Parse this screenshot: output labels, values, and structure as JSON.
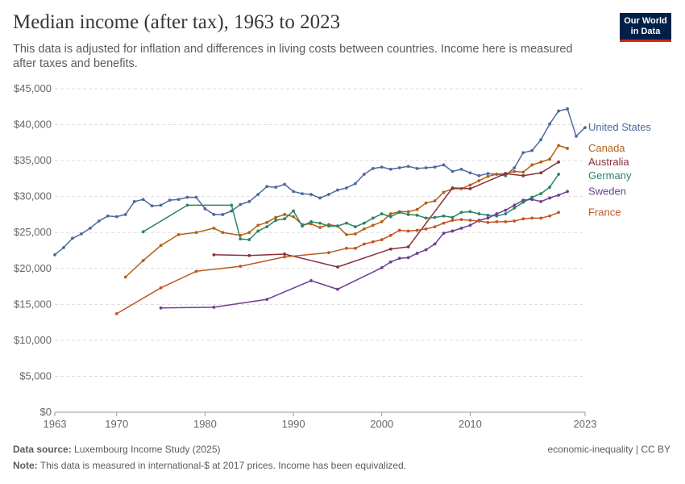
{
  "header": {
    "title": "Median income (after tax), 1963 to 2023",
    "subtitle": "This data is adjusted for inflation and differences in living costs between countries. Income here is measured after taxes and benefits.",
    "logo_line1": "Our World",
    "logo_line2": "in Data"
  },
  "footer": {
    "source_label": "Data source:",
    "source_text": "Luxembourg Income Study (2025)",
    "note_label": "Note:",
    "note_text": "This data is measured in international-$ at 2017 prices. Income has been equivalized.",
    "license": "economic-inequality | CC BY"
  },
  "chart_data": {
    "type": "line",
    "xlabel": "",
    "ylabel": "",
    "xlim": [
      1963,
      2023
    ],
    "ylim": [
      0,
      45000
    ],
    "grid": "horizontal dashed",
    "legend_placement": "right, labels at line ends",
    "x_ticks": [
      1963,
      1970,
      1980,
      1990,
      2000,
      2010,
      2023
    ],
    "x_tick_labels": [
      "1963",
      "1970",
      "1980",
      "1990",
      "2000",
      "2010",
      "2023"
    ],
    "y_ticks": [
      0,
      5000,
      10000,
      15000,
      20000,
      25000,
      30000,
      35000,
      40000,
      45000
    ],
    "y_tick_labels": [
      "$0",
      "$5,000",
      "$10,000",
      "$15,000",
      "$20,000",
      "$25,000",
      "$30,000",
      "$35,000",
      "$40,000",
      "$45,000"
    ],
    "series": [
      {
        "name": "United States",
        "color": "#4c6a9c",
        "points": [
          [
            1963,
            21900
          ],
          [
            1964,
            22900
          ],
          [
            1965,
            24200
          ],
          [
            1966,
            24800
          ],
          [
            1967,
            25600
          ],
          [
            1968,
            26600
          ],
          [
            1969,
            27300
          ],
          [
            1970,
            27200
          ],
          [
            1971,
            27500
          ],
          [
            1972,
            29300
          ],
          [
            1973,
            29600
          ],
          [
            1974,
            28700
          ],
          [
            1975,
            28800
          ],
          [
            1976,
            29500
          ],
          [
            1977,
            29600
          ],
          [
            1978,
            29900
          ],
          [
            1979,
            29900
          ],
          [
            1980,
            28300
          ],
          [
            1981,
            27500
          ],
          [
            1982,
            27500
          ],
          [
            1983,
            28000
          ],
          [
            1984,
            28900
          ],
          [
            1985,
            29300
          ],
          [
            1986,
            30300
          ],
          [
            1987,
            31400
          ],
          [
            1988,
            31300
          ],
          [
            1989,
            31700
          ],
          [
            1990,
            30700
          ],
          [
            1991,
            30400
          ],
          [
            1992,
            30300
          ],
          [
            1993,
            29800
          ],
          [
            1994,
            30300
          ],
          [
            1995,
            30900
          ],
          [
            1996,
            31200
          ],
          [
            1997,
            31800
          ],
          [
            1998,
            33100
          ],
          [
            1999,
            33900
          ],
          [
            2000,
            34100
          ],
          [
            2001,
            33800
          ],
          [
            2002,
            34000
          ],
          [
            2003,
            34200
          ],
          [
            2004,
            33900
          ],
          [
            2005,
            34000
          ],
          [
            2006,
            34100
          ],
          [
            2007,
            34400
          ],
          [
            2008,
            33500
          ],
          [
            2009,
            33800
          ],
          [
            2010,
            33300
          ],
          [
            2011,
            32900
          ],
          [
            2012,
            33200
          ],
          [
            2013,
            33100
          ],
          [
            2014,
            32900
          ],
          [
            2015,
            34000
          ],
          [
            2016,
            36100
          ],
          [
            2017,
            36400
          ],
          [
            2018,
            37900
          ],
          [
            2019,
            40100
          ],
          [
            2020,
            41900
          ],
          [
            2021,
            42200
          ],
          [
            2022,
            38400
          ],
          [
            2023,
            39600
          ]
        ]
      },
      {
        "name": "Canada",
        "color": "#b16214",
        "points": [
          [
            1971,
            18800
          ],
          [
            1973,
            21100
          ],
          [
            1975,
            23200
          ],
          [
            1977,
            24700
          ],
          [
            1979,
            25000
          ],
          [
            1981,
            25600
          ],
          [
            1982,
            25000
          ],
          [
            1984,
            24600
          ],
          [
            1985,
            25000
          ],
          [
            1986,
            26000
          ],
          [
            1987,
            26400
          ],
          [
            1988,
            27100
          ],
          [
            1989,
            27500
          ],
          [
            1990,
            27200
          ],
          [
            1991,
            26100
          ],
          [
            1992,
            26200
          ],
          [
            1993,
            25700
          ],
          [
            1994,
            26100
          ],
          [
            1995,
            25900
          ],
          [
            1996,
            24700
          ],
          [
            1997,
            24800
          ],
          [
            1998,
            25500
          ],
          [
            1999,
            26000
          ],
          [
            2000,
            26500
          ],
          [
            2001,
            27600
          ],
          [
            2002,
            27900
          ],
          [
            2003,
            27900
          ],
          [
            2004,
            28200
          ],
          [
            2005,
            29100
          ],
          [
            2006,
            29400
          ],
          [
            2007,
            30600
          ],
          [
            2008,
            31100
          ],
          [
            2009,
            31100
          ],
          [
            2010,
            31600
          ],
          [
            2011,
            32200
          ],
          [
            2012,
            32800
          ],
          [
            2013,
            33100
          ],
          [
            2014,
            33200
          ],
          [
            2015,
            33500
          ],
          [
            2016,
            33400
          ],
          [
            2017,
            34400
          ],
          [
            2018,
            34800
          ],
          [
            2019,
            35200
          ],
          [
            2020,
            37100
          ],
          [
            2021,
            36700
          ]
        ]
      },
      {
        "name": "Australia",
        "color": "#883039",
        "points": [
          [
            1981,
            21900
          ],
          [
            1985,
            21800
          ],
          [
            1989,
            22000
          ],
          [
            1995,
            20200
          ],
          [
            2001,
            22700
          ],
          [
            2003,
            23000
          ],
          [
            2008,
            31200
          ],
          [
            2010,
            31100
          ],
          [
            2014,
            33200
          ],
          [
            2016,
            32900
          ],
          [
            2018,
            33300
          ],
          [
            2020,
            34800
          ]
        ]
      },
      {
        "name": "Germany",
        "color": "#2c8465",
        "points": [
          [
            1973,
            25100
          ],
          [
            1978,
            28800
          ],
          [
            1983,
            28800
          ],
          [
            1984,
            24100
          ],
          [
            1985,
            24000
          ],
          [
            1986,
            25200
          ],
          [
            1987,
            25800
          ],
          [
            1988,
            26700
          ],
          [
            1989,
            26900
          ],
          [
            1990,
            28000
          ],
          [
            1991,
            25900
          ],
          [
            1992,
            26500
          ],
          [
            1993,
            26300
          ],
          [
            1994,
            25900
          ],
          [
            1995,
            25900
          ],
          [
            1996,
            26300
          ],
          [
            1997,
            25800
          ],
          [
            1998,
            26300
          ],
          [
            1999,
            27000
          ],
          [
            2000,
            27600
          ],
          [
            2001,
            27200
          ],
          [
            2002,
            27800
          ],
          [
            2003,
            27500
          ],
          [
            2004,
            27400
          ],
          [
            2005,
            27000
          ],
          [
            2006,
            27100
          ],
          [
            2007,
            27300
          ],
          [
            2008,
            27100
          ],
          [
            2009,
            27800
          ],
          [
            2010,
            27900
          ],
          [
            2011,
            27600
          ],
          [
            2012,
            27400
          ],
          [
            2013,
            27300
          ],
          [
            2014,
            27600
          ],
          [
            2015,
            28400
          ],
          [
            2016,
            29200
          ],
          [
            2017,
            29900
          ],
          [
            2018,
            30400
          ],
          [
            2019,
            31300
          ],
          [
            2020,
            33100
          ]
        ]
      },
      {
        "name": "Sweden",
        "color": "#6d3e91",
        "points": [
          [
            1975,
            14500
          ],
          [
            1981,
            14600
          ],
          [
            1987,
            15700
          ],
          [
            1992,
            18300
          ],
          [
            1995,
            17100
          ],
          [
            2000,
            20100
          ],
          [
            2001,
            20900
          ],
          [
            2002,
            21400
          ],
          [
            2003,
            21500
          ],
          [
            2004,
            22100
          ],
          [
            2005,
            22600
          ],
          [
            2006,
            23400
          ],
          [
            2007,
            24900
          ],
          [
            2008,
            25200
          ],
          [
            2009,
            25600
          ],
          [
            2010,
            26000
          ],
          [
            2011,
            26700
          ],
          [
            2012,
            27000
          ],
          [
            2013,
            27600
          ],
          [
            2014,
            28100
          ],
          [
            2015,
            28800
          ],
          [
            2016,
            29500
          ],
          [
            2017,
            29600
          ],
          [
            2018,
            29300
          ],
          [
            2019,
            29800
          ],
          [
            2020,
            30200
          ],
          [
            2021,
            30700
          ]
        ]
      },
      {
        "name": "France",
        "color": "#c15623",
        "points": [
          [
            1970,
            13700
          ],
          [
            1975,
            17300
          ],
          [
            1979,
            19600
          ],
          [
            1984,
            20300
          ],
          [
            1989,
            21600
          ],
          [
            1994,
            22200
          ],
          [
            1996,
            22800
          ],
          [
            1997,
            22800
          ],
          [
            1998,
            23400
          ],
          [
            1999,
            23700
          ],
          [
            2000,
            24000
          ],
          [
            2001,
            24600
          ],
          [
            2002,
            25300
          ],
          [
            2003,
            25200
          ],
          [
            2004,
            25300
          ],
          [
            2005,
            25500
          ],
          [
            2006,
            25800
          ],
          [
            2007,
            26300
          ],
          [
            2008,
            26700
          ],
          [
            2009,
            26800
          ],
          [
            2010,
            26700
          ],
          [
            2011,
            26600
          ],
          [
            2012,
            26400
          ],
          [
            2013,
            26500
          ],
          [
            2014,
            26500
          ],
          [
            2015,
            26600
          ],
          [
            2016,
            26900
          ],
          [
            2017,
            27000
          ],
          [
            2018,
            27000
          ],
          [
            2019,
            27300
          ],
          [
            2020,
            27800
          ]
        ]
      }
    ]
  }
}
